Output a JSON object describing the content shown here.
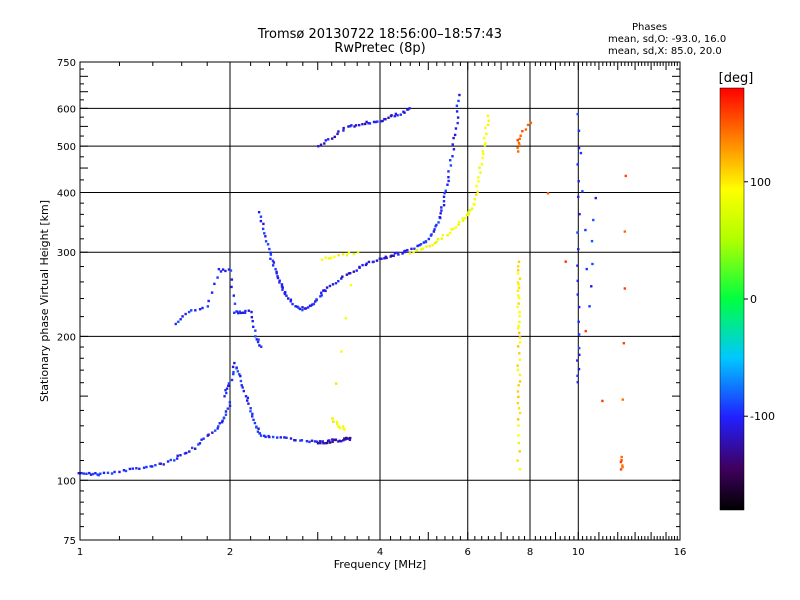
{
  "chart_data": {
    "type": "scatter",
    "title": "Tromsø 20130722 18:56:00–18:57:43",
    "subtitle": "RwPretec (8p)",
    "xlabel": "Frequency [MHz]",
    "ylabel": "Stationary phase Virtual Height [km]",
    "x_scale": "log",
    "y_scale": "log",
    "xlim": [
      1,
      16
    ],
    "ylim": [
      75,
      750
    ],
    "x_ticks": [
      "1",
      "2",
      "4",
      "6",
      "8",
      "10",
      "16"
    ],
    "y_ticks": [
      "75",
      "100",
      "200",
      "300",
      "400",
      "500",
      "600",
      "750"
    ],
    "grid": true,
    "legend_header": "Phases",
    "legend_lines": [
      "mean, sd,O: -93.0, 16.0",
      "mean, sd,X:  85.0, 20.0"
    ],
    "colorbar": {
      "label": "[deg]",
      "ticks": [
        "100",
        "0",
        "-100"
      ],
      "range": [
        -180,
        180
      ]
    },
    "traces": [
      {
        "phase": -100,
        "points": [
          [
            1.0,
            104
          ],
          [
            1.05,
            103
          ],
          [
            1.1,
            103
          ],
          [
            1.2,
            104
          ],
          [
            1.3,
            106
          ],
          [
            1.4,
            107
          ],
          [
            1.5,
            109
          ],
          [
            1.6,
            113
          ],
          [
            1.7,
            117
          ],
          [
            1.8,
            124
          ],
          [
            1.9,
            130
          ],
          [
            1.95,
            136
          ],
          [
            2.0,
            145
          ]
        ]
      },
      {
        "phase": -100,
        "points": [
          [
            1.95,
            150
          ],
          [
            2.0,
            160
          ],
          [
            2.05,
            175
          ],
          [
            2.1,
            165
          ],
          [
            2.15,
            150
          ],
          [
            2.2,
            140
          ],
          [
            2.25,
            130
          ],
          [
            2.3,
            125
          ],
          [
            2.4,
            123
          ],
          [
            2.6,
            122
          ],
          [
            2.8,
            121
          ],
          [
            3.0,
            120
          ]
        ]
      },
      {
        "phase": -120,
        "points": [
          [
            3.0,
            120
          ],
          [
            3.1,
            120
          ],
          [
            3.2,
            121
          ],
          [
            3.3,
            121
          ],
          [
            3.4,
            122
          ],
          [
            3.5,
            122
          ]
        ]
      },
      {
        "phase": -100,
        "points": [
          [
            2.3,
            365
          ],
          [
            2.35,
            330
          ],
          [
            2.4,
            300
          ],
          [
            2.45,
            280
          ],
          [
            2.5,
            265
          ],
          [
            2.55,
            252
          ],
          [
            2.6,
            242
          ],
          [
            2.7,
            232
          ],
          [
            2.8,
            228
          ],
          [
            2.9,
            232
          ],
          [
            3.0,
            240
          ],
          [
            3.1,
            250
          ]
        ]
      },
      {
        "phase": -110,
        "points": [
          [
            3.1,
            250
          ],
          [
            3.3,
            262
          ],
          [
            3.5,
            272
          ],
          [
            3.7,
            282
          ],
          [
            3.9,
            288
          ],
          [
            4.1,
            292
          ],
          [
            4.3,
            297
          ],
          [
            4.5,
            300
          ]
        ]
      },
      {
        "phase": -100,
        "points": [
          [
            4.5,
            300
          ],
          [
            4.8,
            310
          ],
          [
            5.0,
            320
          ],
          [
            5.2,
            340
          ],
          [
            5.3,
            360
          ],
          [
            5.4,
            390
          ],
          [
            5.5,
            430
          ],
          [
            5.6,
            490
          ],
          [
            5.7,
            560
          ],
          [
            5.75,
            640
          ]
        ]
      },
      {
        "phase": 90,
        "points": [
          [
            4.6,
            300
          ],
          [
            4.9,
            305
          ],
          [
            5.2,
            315
          ],
          [
            5.5,
            330
          ],
          [
            5.8,
            345
          ],
          [
            6.0,
            360
          ],
          [
            6.2,
            380
          ],
          [
            6.3,
            420
          ],
          [
            6.4,
            470
          ],
          [
            6.5,
            520
          ],
          [
            6.6,
            580
          ]
        ]
      },
      {
        "phase": -110,
        "points": [
          [
            3.0,
            500
          ],
          [
            3.2,
            520
          ],
          [
            3.4,
            545
          ],
          [
            3.6,
            555
          ],
          [
            3.8,
            560
          ],
          [
            4.0,
            565
          ],
          [
            4.2,
            575
          ],
          [
            4.4,
            585
          ],
          [
            4.6,
            600
          ]
        ]
      },
      {
        "phase": -100,
        "points": [
          [
            1.55,
            212
          ],
          [
            1.65,
            225
          ],
          [
            1.8,
            230
          ],
          [
            1.9,
            275
          ],
          [
            2.0,
            275
          ],
          [
            2.05,
            225
          ],
          [
            2.1,
            225
          ],
          [
            2.2,
            225
          ],
          [
            2.25,
            200
          ],
          [
            2.3,
            190
          ]
        ]
      },
      {
        "phase": 90,
        "points": [
          [
            3.05,
            290
          ],
          [
            3.3,
            295
          ],
          [
            3.6,
            300
          ],
          [
            3.2,
            135
          ],
          [
            3.3,
            130
          ],
          [
            3.4,
            128
          ]
        ]
      },
      {
        "phase": 100,
        "points": [
          [
            7.6,
            105
          ],
          [
            7.6,
            130
          ],
          [
            7.6,
            150
          ],
          [
            7.6,
            170
          ],
          [
            7.6,
            195
          ],
          [
            7.6,
            215
          ],
          [
            7.6,
            240
          ],
          [
            7.6,
            260
          ],
          [
            7.6,
            285
          ]
        ]
      },
      {
        "phase": -100,
        "points": [
          [
            10.0,
            160
          ],
          [
            10.0,
            190
          ],
          [
            10.0,
            260
          ],
          [
            10.0,
            390
          ],
          [
            10.0,
            580
          ],
          [
            10.5,
            230
          ],
          [
            10.8,
            390
          ]
        ]
      },
      {
        "phase": 150,
        "points": [
          [
            7.6,
            490
          ],
          [
            7.6,
            520
          ],
          [
            8.0,
            560
          ],
          [
            12.2,
            105
          ],
          [
            12.2,
            112
          ],
          [
            12.5,
            435
          ]
        ]
      }
    ]
  }
}
